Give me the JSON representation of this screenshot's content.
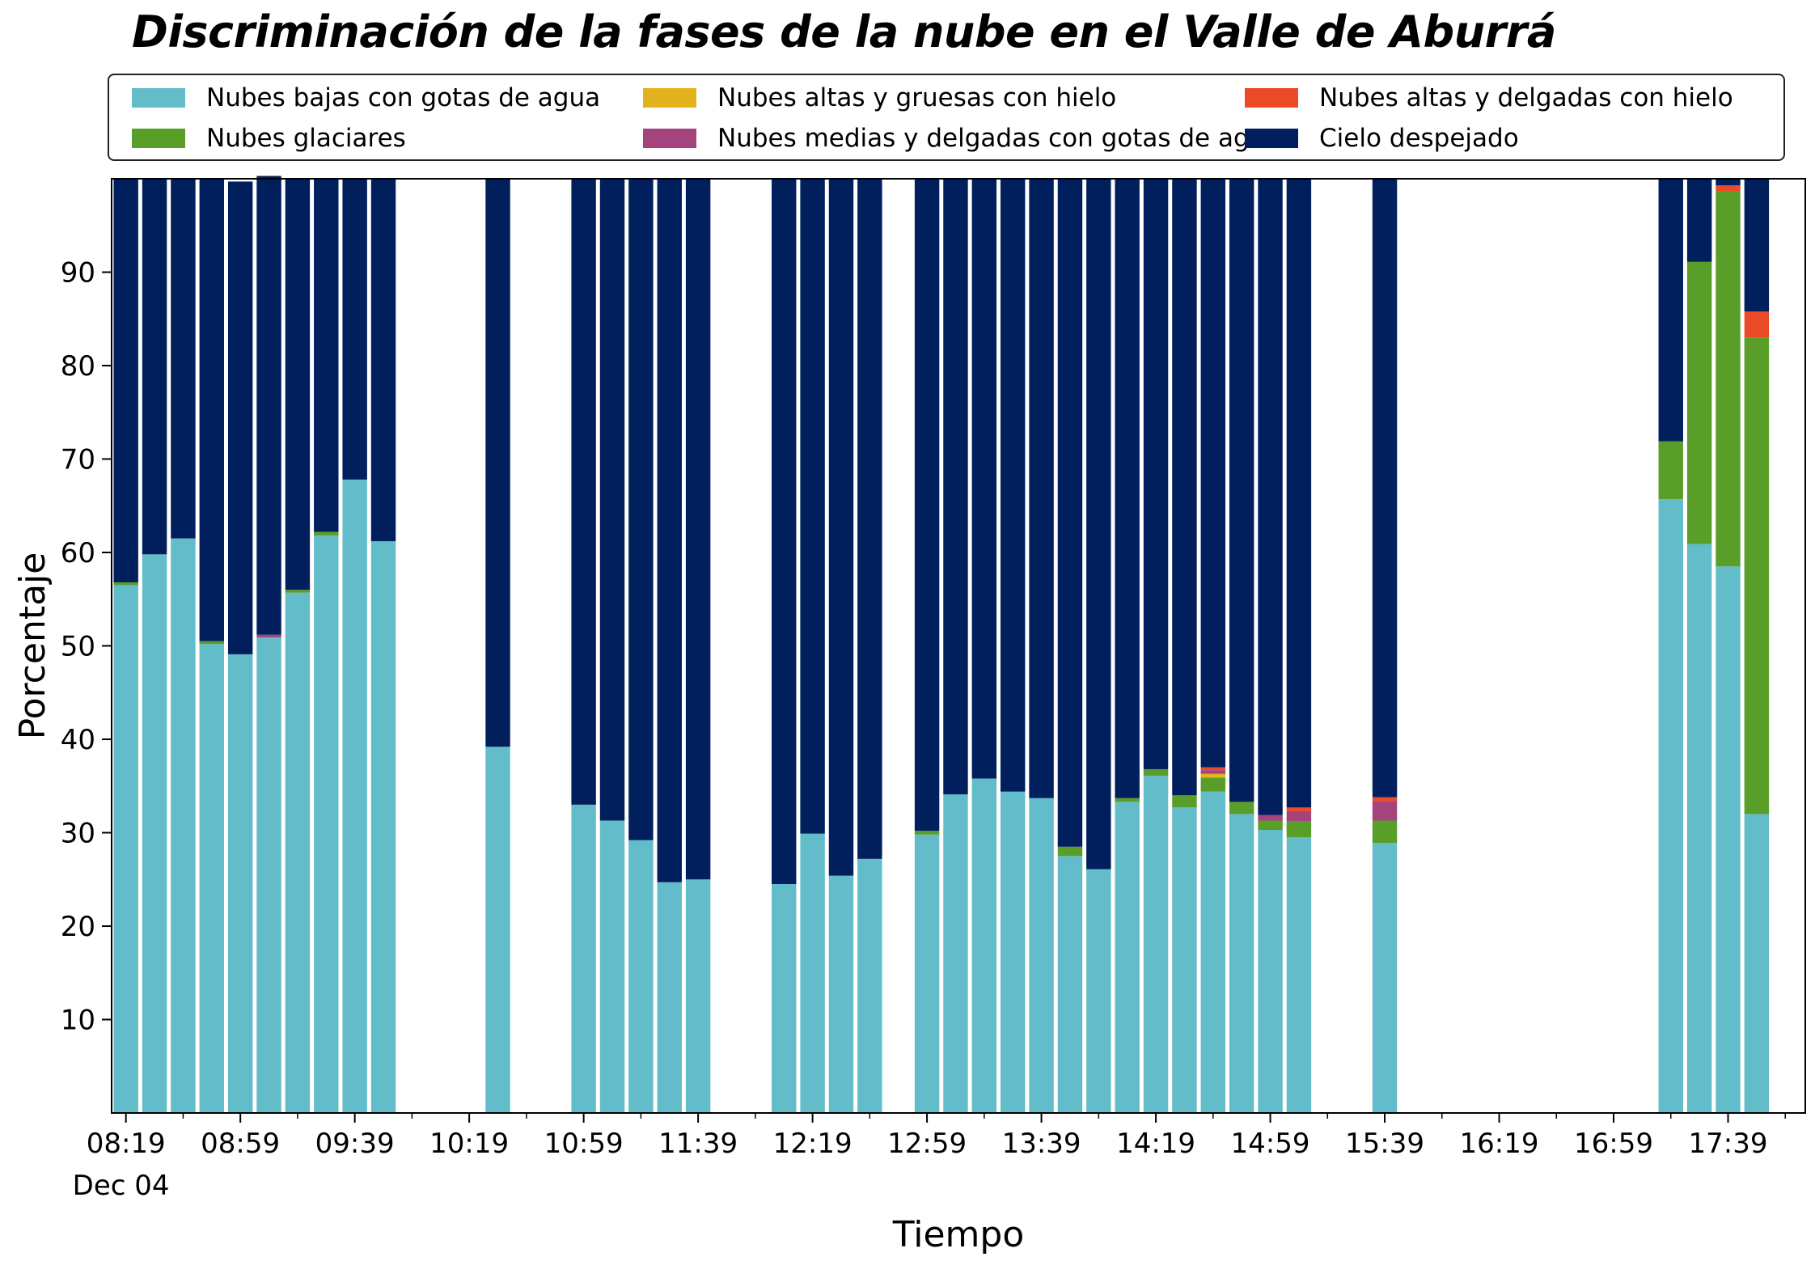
{
  "chart_data": {
    "type": "bar",
    "stacked": true,
    "title": "Discriminación de la fases de la nube en el Valle de Aburrá",
    "xlabel": "Tiempo",
    "ylabel": "Porcentaje",
    "ylim": [
      0,
      100
    ],
    "yticks": [
      10,
      20,
      30,
      40,
      50,
      60,
      70,
      80,
      90
    ],
    "x_range": [
      "08:14",
      "18:06"
    ],
    "xticks": [
      "08:19",
      "08:59",
      "09:39",
      "10:19",
      "10:59",
      "11:39",
      "12:19",
      "12:59",
      "13:39",
      "14:19",
      "14:59",
      "15:39",
      "16:19",
      "16:59",
      "17:39"
    ],
    "xtick_date": "Dec 04",
    "grid": false,
    "legend_position": "top",
    "times": [
      "08:19",
      "08:29",
      "08:39",
      "08:49",
      "08:59",
      "09:09",
      "09:19",
      "09:29",
      "09:39",
      "09:49",
      "10:29",
      "10:59",
      "11:09",
      "11:19",
      "11:29",
      "11:39",
      "12:09",
      "12:19",
      "12:29",
      "12:39",
      "12:59",
      "13:09",
      "13:19",
      "13:29",
      "13:39",
      "13:49",
      "13:59",
      "14:09",
      "14:19",
      "14:29",
      "14:39",
      "14:49",
      "14:59",
      "15:09",
      "15:39",
      "17:19",
      "17:29",
      "17:39",
      "17:49"
    ],
    "series": [
      {
        "name": "Nubes bajas con gotas de agua",
        "color": "#63BCC9",
        "values": [
          56.5,
          59.8,
          61.5,
          50.2,
          49.1,
          50.9,
          55.7,
          61.8,
          67.8,
          61.2,
          39.2,
          33.0,
          31.3,
          29.2,
          24.7,
          25.0,
          24.5,
          29.9,
          25.4,
          27.2,
          29.8,
          34.1,
          35.8,
          34.4,
          33.7,
          27.5,
          26.1,
          33.3,
          36.1,
          32.7,
          34.4,
          32.0,
          30.3,
          29.5,
          28.9,
          65.7,
          60.9,
          58.5,
          32.0
        ]
      },
      {
        "name": "Nubes glaciares",
        "color": "#5A9E2A",
        "values": [
          0.3,
          0,
          0,
          0.3,
          0,
          0,
          0.3,
          0.4,
          0,
          0,
          0,
          0,
          0,
          0,
          0,
          0,
          0,
          0,
          0,
          0,
          0.4,
          0,
          0,
          0,
          0,
          1.0,
          0,
          0.4,
          0.7,
          1.3,
          1.5,
          1.3,
          1.0,
          1.7,
          2.4,
          6.2,
          30.2,
          40.2,
          51.0
        ]
      },
      {
        "name": "Nubes altas y gruesas con hielo",
        "color": "#E2B21D",
        "values": [
          0,
          0,
          0,
          0,
          0,
          0,
          0,
          0,
          0,
          0,
          0,
          0,
          0,
          0,
          0,
          0,
          0,
          0,
          0,
          0,
          0,
          0,
          0,
          0,
          0,
          0,
          0,
          0,
          0,
          0,
          0.4,
          0,
          0,
          0,
          0,
          0,
          0,
          0,
          0
        ]
      },
      {
        "name": "Nubes medias y delgadas con gotas de agua",
        "color": "#A4437C",
        "values": [
          0,
          0,
          0,
          0,
          0,
          0.3,
          0,
          0,
          0,
          0,
          0,
          0,
          0,
          0,
          0,
          0,
          0,
          0,
          0,
          0,
          0,
          0,
          0,
          0,
          0,
          0,
          0,
          0,
          0,
          0,
          0.4,
          0,
          0.6,
          1.1,
          2.1,
          0,
          0,
          0,
          0
        ]
      },
      {
        "name": "Nubes altas y delgadas con hielo",
        "color": "#EA4A28",
        "values": [
          0,
          0,
          0,
          0,
          0,
          0,
          0,
          0,
          0,
          0,
          0,
          0,
          0,
          0,
          0,
          0,
          0,
          0,
          0,
          0,
          0,
          0,
          0,
          0,
          0,
          0,
          0,
          0,
          0,
          0,
          0.3,
          0,
          0,
          0.4,
          0.4,
          0,
          0,
          0.6,
          2.8
        ]
      },
      {
        "name": "Cielo despejado",
        "color": "#001F5C",
        "values": [
          43.2,
          40.2,
          38.5,
          49.5,
          50.6,
          49.1,
          44.0,
          37.8,
          32.2,
          38.8,
          60.8,
          67.0,
          68.7,
          70.8,
          75.3,
          75.0,
          75.5,
          70.1,
          74.6,
          72.8,
          69.8,
          65.9,
          64.2,
          65.6,
          66.3,
          71.5,
          73.9,
          66.3,
          63.2,
          66.0,
          63.0,
          66.7,
          68.1,
          67.3,
          66.2,
          28.1,
          8.9,
          0.7,
          14.2
        ]
      }
    ]
  }
}
